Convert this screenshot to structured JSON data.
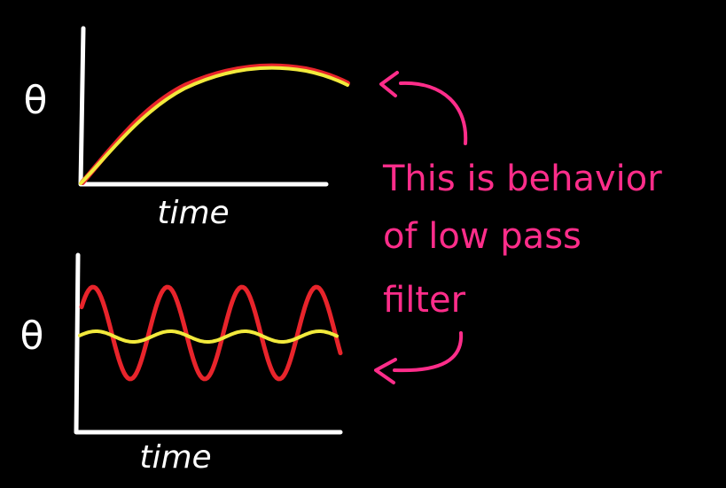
{
  "colors": {
    "background": "#000000",
    "axis": "#ffffff",
    "raw_signal": "#e8242b",
    "filtered_signal": "#f2ea3c",
    "annotation": "#ff2d8a"
  },
  "top_plot": {
    "y_label": "θ",
    "x_label": "time"
  },
  "bottom_plot": {
    "y_label": "θ",
    "x_label": "time"
  },
  "annotation": {
    "lines": [
      "This is behavior",
      "of low pass",
      "filter"
    ]
  }
}
